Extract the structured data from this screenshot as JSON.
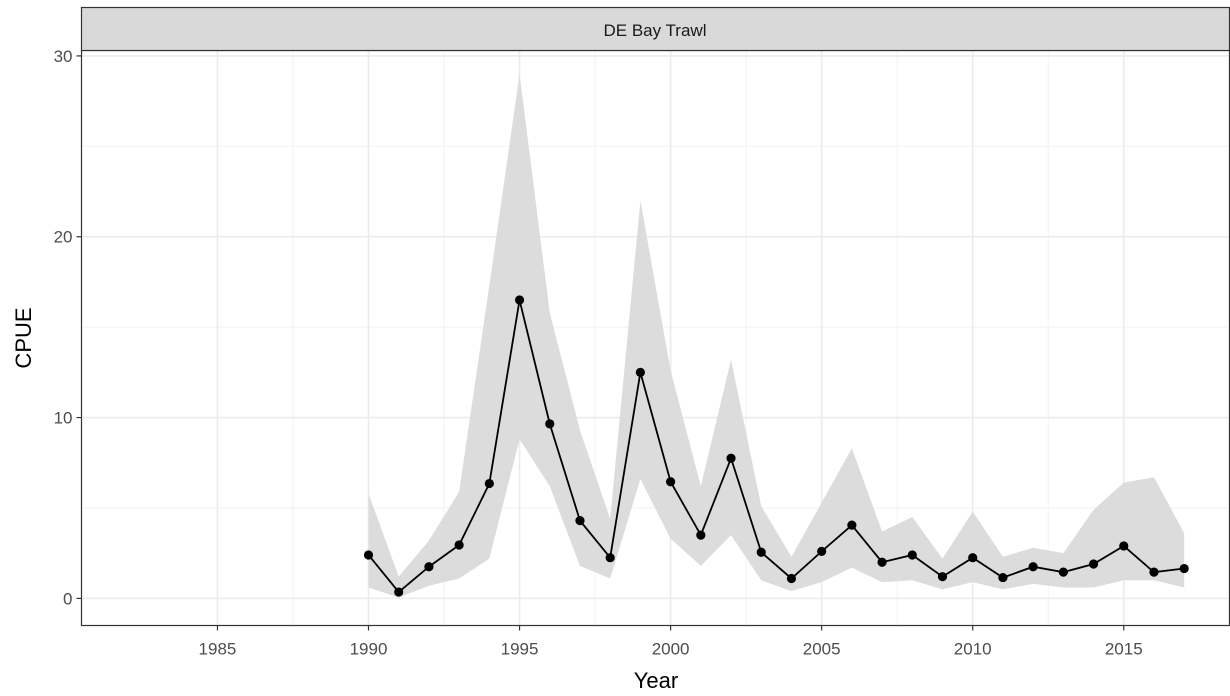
{
  "chart_data": {
    "type": "line",
    "facet_label": "DE Bay Trawl",
    "xlabel": "Year",
    "ylabel": "CPUE",
    "xlim": [
      1980.5,
      2018.5
    ],
    "ylim": [
      -1.5,
      30.3
    ],
    "x_ticks": [
      1985,
      1990,
      1995,
      2000,
      2005,
      2010,
      2015
    ],
    "y_ticks": [
      0,
      10,
      20,
      30
    ],
    "grid": true,
    "series": [
      {
        "x": [
          1990,
          1991,
          1992,
          1993,
          1994,
          1995,
          1996,
          1997,
          1998,
          1999,
          2000,
          2001,
          2002,
          2003,
          2004,
          2005,
          2006,
          2007,
          2008,
          2009,
          2010,
          2011,
          2012,
          2013,
          2014,
          2015,
          2016,
          2017
        ],
        "y": [
          2.4,
          0.35,
          1.75,
          2.95,
          6.35,
          16.5,
          9.65,
          4.3,
          2.25,
          12.5,
          6.45,
          3.5,
          7.75,
          2.55,
          1.1,
          2.6,
          4.05,
          2.0,
          2.4,
          1.2,
          2.25,
          1.15,
          1.75,
          1.45,
          1.9,
          2.9,
          1.45,
          1.65
        ],
        "lower": [
          0.6,
          0.05,
          0.7,
          1.1,
          2.2,
          8.8,
          6.2,
          1.8,
          1.1,
          6.6,
          3.3,
          1.8,
          3.5,
          1.0,
          0.4,
          0.9,
          1.7,
          0.9,
          1.0,
          0.5,
          0.9,
          0.5,
          0.8,
          0.6,
          0.6,
          1.0,
          1.0,
          0.6
        ],
        "upper": [
          5.8,
          1.2,
          3.2,
          5.9,
          17.3,
          29.0,
          15.8,
          9.3,
          4.4,
          22.0,
          12.6,
          6.2,
          13.2,
          5.1,
          2.3,
          5.3,
          8.3,
          3.7,
          4.5,
          2.2,
          4.8,
          2.3,
          2.8,
          2.5,
          4.9,
          6.4,
          6.7,
          3.6
        ]
      }
    ],
    "colors": {
      "line": "#000000",
      "ribbon": "#dcdcdc",
      "grid_major": "#ebebeb",
      "grid_minor": "#f2f2f2",
      "strip_fill": "#d9d9d9",
      "border": "#333333"
    }
  }
}
